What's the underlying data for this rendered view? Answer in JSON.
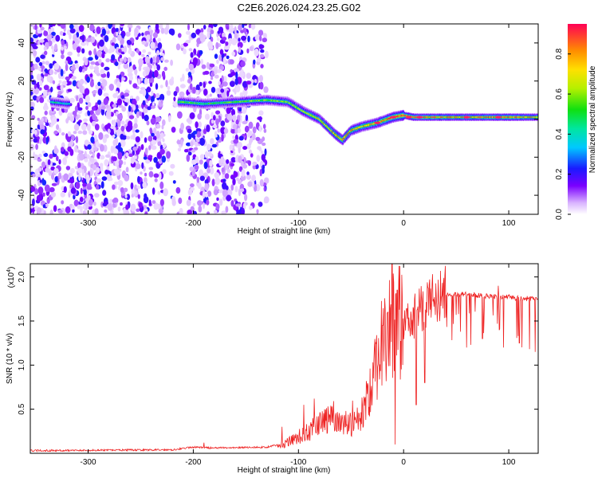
{
  "title": "C2E6.2026.024.23.25.G02",
  "chart_data": [
    {
      "type": "heatmap",
      "name": "spectrogram",
      "xlabel": "Height of straight line (km)",
      "ylabel": "Frequency (Hz)",
      "xlim": [
        -355,
        128
      ],
      "ylim": [
        -50,
        50
      ],
      "xticks": [
        -300,
        -200,
        -100,
        0,
        100
      ],
      "yticks": [
        -40,
        -20,
        0,
        20,
        40
      ],
      "colorbar": {
        "label": "Normalized spectral amplitude",
        "range": [
          0,
          0.95
        ],
        "ticks": [
          0.0,
          0.2,
          0.4,
          0.6,
          0.8
        ]
      },
      "signal_track": {
        "x": [
          -335,
          -320,
          -210,
          -190,
          -160,
          -130,
          -110,
          -95,
          -80,
          -65,
          -58,
          -50,
          -40,
          -25,
          -10,
          0,
          10,
          50,
          100,
          128
        ],
        "frequency": [
          9,
          8,
          9,
          8,
          9,
          10,
          9,
          4,
          0,
          -8,
          -11,
          -6,
          -4,
          -2,
          1,
          2,
          1,
          1,
          1,
          1
        ],
        "peak_amplitude": [
          0.45,
          0.4,
          0.55,
          0.5,
          0.55,
          0.6,
          0.6,
          0.65,
          0.7,
          0.8,
          0.85,
          0.8,
          0.75,
          0.8,
          0.95,
          0.95,
          0.9,
          0.8,
          0.9,
          0.75
        ]
      },
      "noise_region_x": [
        -355,
        -130
      ]
    },
    {
      "type": "line",
      "name": "snr",
      "xlabel": "Height of straight line (km)",
      "ylabel": "SNR (10 * v/v)",
      "yscale_label": "(x10",
      "yscale_exp": "4",
      "xlim": [
        -355,
        128
      ],
      "ylim": [
        0,
        2.15
      ],
      "xticks": [
        -300,
        -200,
        -100,
        0,
        100
      ],
      "yticks": [
        0.5,
        1.0,
        1.5,
        2.0
      ],
      "ytick_labels": [
        "0.5",
        "1.0",
        "1.5",
        "2.0"
      ],
      "color": "#ee2222",
      "envelope": {
        "x": [
          -355,
          -220,
          -200,
          -180,
          -130,
          -110,
          -90,
          -80,
          -70,
          -60,
          -50,
          -40,
          -35,
          -30,
          -25,
          -20,
          -15,
          -10,
          -5,
          0,
          5,
          10,
          15,
          20,
          30,
          40,
          50,
          60,
          70,
          80,
          90,
          100,
          110,
          120,
          128
        ],
        "y": [
          0.03,
          0.04,
          0.07,
          0.06,
          0.07,
          0.12,
          0.25,
          0.35,
          0.38,
          0.32,
          0.3,
          0.45,
          0.6,
          0.8,
          1.1,
          1.3,
          1.4,
          1.5,
          1.5,
          1.45,
          1.5,
          1.55,
          1.6,
          1.7,
          1.78,
          1.82,
          1.8,
          1.8,
          1.79,
          1.78,
          1.78,
          1.77,
          1.76,
          1.75,
          1.75
        ]
      },
      "spikes": [
        {
          "x": -190,
          "y": 0.12
        },
        {
          "x": -95,
          "y": 0.55
        },
        {
          "x": -85,
          "y": 0.62
        },
        {
          "x": -75,
          "y": 0.5
        },
        {
          "x": -68,
          "y": 0.53
        },
        {
          "x": -55,
          "y": 0.48
        },
        {
          "x": -28,
          "y": 1.2
        },
        {
          "x": -20,
          "y": 1.45
        },
        {
          "x": -15,
          "y": 1.6
        },
        {
          "x": -11,
          "y": 2.15
        },
        {
          "x": -6,
          "y": 1.85
        },
        {
          "x": 4,
          "y": 1.7
        },
        {
          "x": 12,
          "y": 1.65
        },
        {
          "x": 20,
          "y": 1.75
        },
        {
          "x": 60,
          "y": 1.95
        },
        {
          "x": 90,
          "y": 1.9
        }
      ],
      "dips": [
        {
          "x": -8,
          "y": 0.1
        },
        {
          "x": 12,
          "y": 0.55
        },
        {
          "x": 20,
          "y": 0.8
        },
        {
          "x": 60,
          "y": 1.2
        },
        {
          "x": 75,
          "y": 1.3
        },
        {
          "x": 95,
          "y": 1.2
        },
        {
          "x": 110,
          "y": 1.25
        },
        {
          "x": 125,
          "y": 1.15
        }
      ]
    }
  ]
}
